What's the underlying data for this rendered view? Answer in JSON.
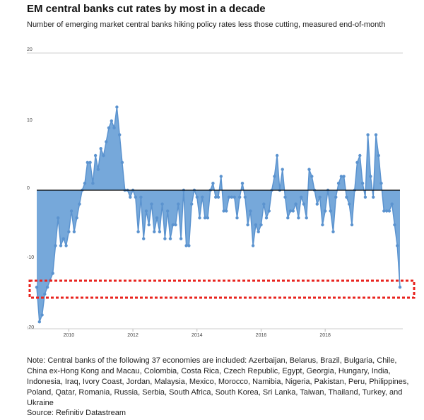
{
  "title": "EM central banks cut rates by most in a decade",
  "subtitle": "Number of emerging market central banks hiking policy rates less those cutting, measured end-of-month",
  "note": "Note: Central banks of the following 37 economies are included: Azerbaijan, Belarus, Brazil, Bulgaria, Chile, China ex-Hong Kong and Macau, Colombia, Costa Rica, Czech Republic, Egypt, Georgia, Hungary, India, Indonesia, Iraq, Ivory Coast, Jordan, Malaysia, Mexico, Morocco, Namibia, Nigeria, Pakistan, Peru, Philippines, Poland, Qatar, Romania, Russia, Serbia, South Africa, South Korea, Sri Lanka, Taiwan, Thailand, Turkey, and Ukraine",
  "source": "Source: Refinitiv Datastream",
  "colors": {
    "area_fill": "#6fa3d8",
    "line": "#5b93cf",
    "zero_line": "#000000",
    "highlight_box": "#e8231e"
  },
  "chart_data": {
    "type": "area",
    "title": "EM central banks cut rates by most in a decade",
    "subtitle": "Number of emerging market central banks hiking policy rates less those cutting, measured end-of-month",
    "xlabel": "",
    "ylabel": "",
    "x_ticks": [
      "2010",
      "2012",
      "2014",
      "2016",
      "2018"
    ],
    "y_ticks": [
      "20",
      "10",
      "0",
      "-10",
      "-20"
    ],
    "ylim": [
      -20,
      20
    ],
    "xlim": [
      "2009-01",
      "2019-08"
    ],
    "grid": false,
    "legend": "none",
    "highlight": "dashed red box around the latest reading (about -14)",
    "series": [
      {
        "start": "2009-01",
        "frequency": "monthly",
        "values": [
          -14,
          -19,
          -18,
          -15,
          -14,
          -13,
          -12,
          -8,
          -4,
          -8,
          -7,
          -8,
          -6,
          -3,
          -6,
          -4,
          -2,
          0,
          1,
          4,
          4,
          1,
          5,
          3,
          6,
          5,
          7,
          9,
          10,
          9,
          12,
          8,
          4,
          0,
          0,
          -1,
          0,
          -1,
          -6,
          -1,
          -7,
          -3,
          -5,
          -2,
          -6,
          -4,
          -6,
          -2,
          -7,
          -3,
          -7,
          -5,
          -5,
          -2,
          -7,
          0,
          -8,
          -8,
          -2,
          0,
          -1,
          -4,
          -1,
          -4,
          -4,
          0,
          1,
          -1,
          -1,
          2,
          -3,
          -3,
          -1,
          -1,
          -1,
          -4,
          -1,
          1,
          -1,
          -5,
          -3,
          -8,
          -5,
          -6,
          -5,
          -2,
          -4,
          -3,
          0,
          2,
          5,
          0,
          3,
          -1,
          -4,
          -3,
          -3,
          -2,
          -4,
          -1,
          -2,
          -4,
          3,
          2,
          0,
          -2,
          -1,
          -5,
          -3,
          0,
          -3,
          -6,
          -1,
          1,
          2,
          2,
          -1,
          -2,
          -5,
          0,
          4,
          5,
          1,
          -1,
          8,
          2,
          -1,
          8,
          5,
          1,
          -3,
          -3,
          -3,
          -2,
          -5,
          -8,
          -14
        ]
      }
    ]
  }
}
